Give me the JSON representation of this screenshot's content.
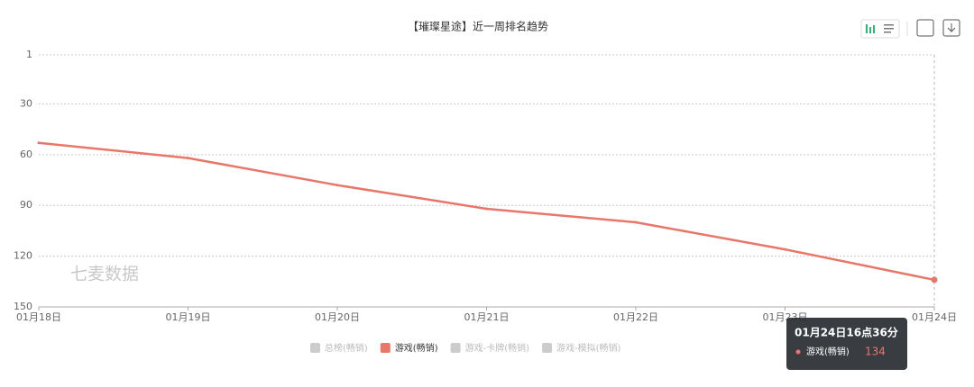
{
  "chart_data": {
    "type": "line",
    "title": "【璀璨星途】近一周排名趋势",
    "watermark": "七麦数据",
    "categories": [
      "01月18日",
      "01月19日",
      "01月20日",
      "01月21日",
      "01月22日",
      "01月23日",
      "01月24日"
    ],
    "series": [
      {
        "name": "游戏(畅销)",
        "color": "#e8776a",
        "values": [
          53,
          62,
          78,
          92,
          100,
          116,
          134
        ]
      }
    ],
    "hidden_series": [
      "总榜(畅销)",
      "游戏-卡牌(畅销)",
      "游戏-模拟(畅销)"
    ],
    "ylim": [
      1,
      150
    ],
    "yticks": [
      1,
      30,
      60,
      90,
      120,
      150
    ],
    "y_inverse": true,
    "grid": true,
    "tooltip": {
      "title": "01月24日16点36分",
      "index": 6
    }
  }
}
